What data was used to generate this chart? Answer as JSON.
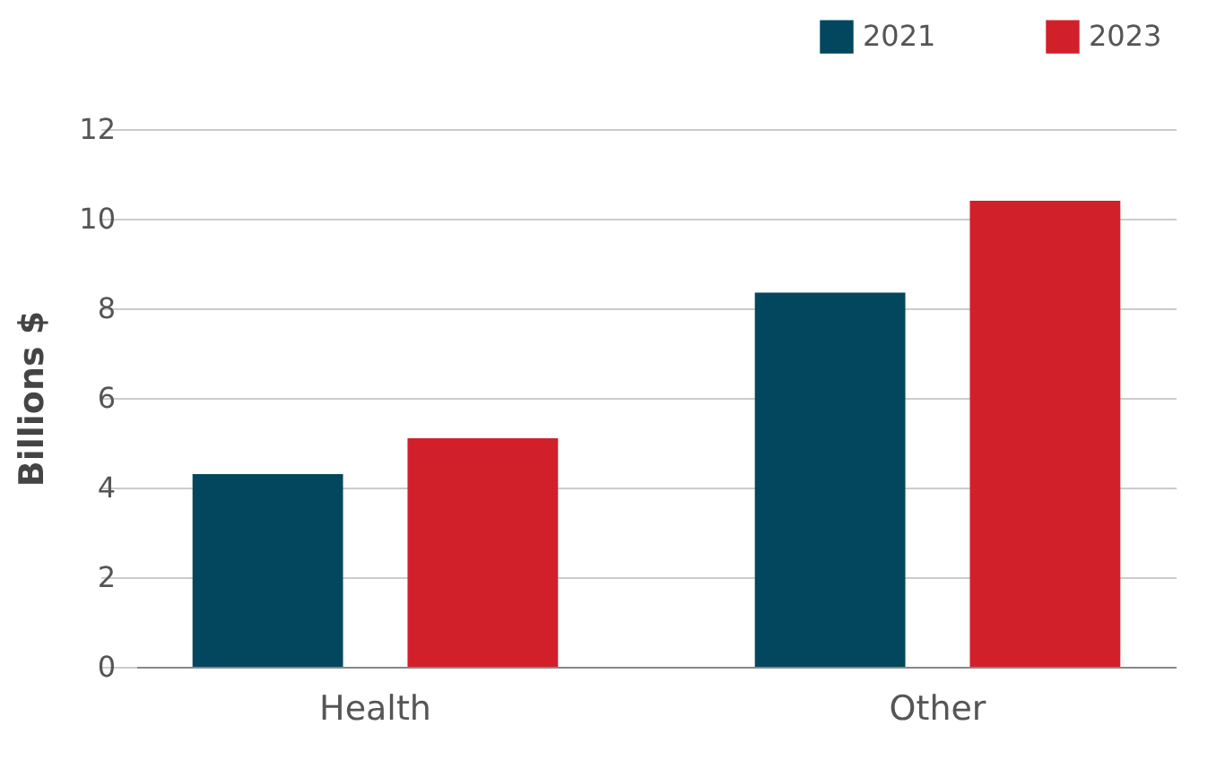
{
  "chart_data": {
    "type": "bar",
    "ylabel": "Billions $",
    "categories": [
      "Health",
      "Other"
    ],
    "series": [
      {
        "name": "2021",
        "color": "#02475e",
        "values": [
          4.3,
          8.35
        ]
      },
      {
        "name": "2023",
        "color": "#d2202b",
        "values": [
          5.1,
          10.4
        ]
      }
    ],
    "ylim": [
      0,
      12
    ],
    "yticks": [
      0,
      2,
      4,
      6,
      8,
      10,
      12
    ],
    "grid": "y",
    "legend": "top right"
  }
}
